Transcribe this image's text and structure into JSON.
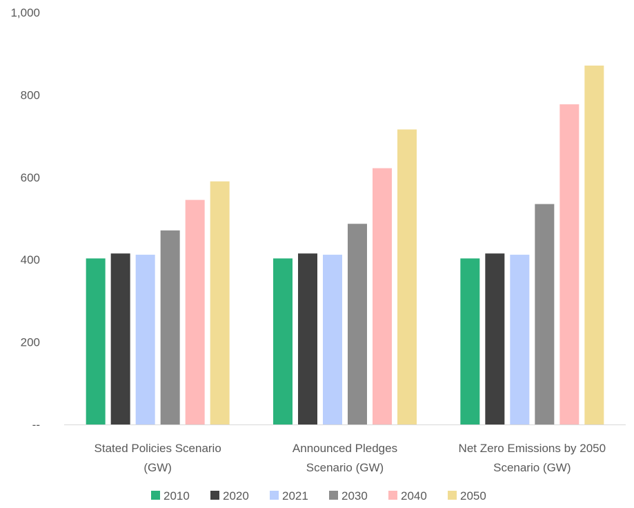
{
  "chart_data": {
    "type": "bar",
    "title": "",
    "xlabel": "",
    "ylabel": "",
    "ylim": [
      0,
      1000
    ],
    "y_ticks": [
      {
        "value": 0,
        "label": "--"
      },
      {
        "value": 200,
        "label": "200"
      },
      {
        "value": 400,
        "label": "400"
      },
      {
        "value": 600,
        "label": "600"
      },
      {
        "value": 800,
        "label": "800"
      },
      {
        "value": 1000,
        "label": "1,000"
      }
    ],
    "grid": false,
    "legend_position": "bottom",
    "categories": [
      [
        "Stated Policies Scenario",
        "(GW)"
      ],
      [
        "Announced Pledges",
        "Scenario (GW)"
      ],
      [
        "Net Zero Emissions by 2050",
        "Scenario (GW)"
      ]
    ],
    "series": [
      {
        "name": "2010",
        "color": "#2ab27b",
        "values": [
          403,
          403,
          403
        ]
      },
      {
        "name": "2020",
        "color": "#404040",
        "values": [
          415,
          415,
          415
        ]
      },
      {
        "name": "2021",
        "color": "#b9cefd",
        "values": [
          412,
          412,
          412
        ]
      },
      {
        "name": "2030",
        "color": "#8c8c8c",
        "values": [
          471,
          487,
          535
        ]
      },
      {
        "name": "2040",
        "color": "#ffb9b9",
        "values": [
          545,
          622,
          777
        ]
      },
      {
        "name": "2050",
        "color": "#f1dc94",
        "values": [
          590,
          716,
          871
        ]
      }
    ]
  }
}
